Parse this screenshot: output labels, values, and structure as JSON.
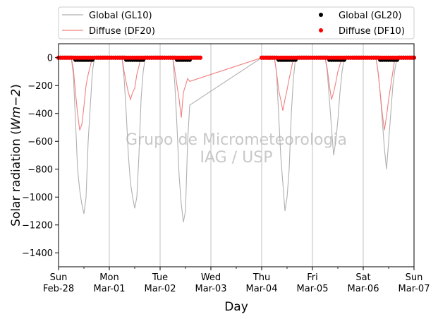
{
  "chart_data": {
    "type": "line",
    "title": "",
    "xlabel": "Day",
    "ylabel_main": "Solar radiation (",
    "ylabel_unit": "Wm−2",
    "ylabel_close": ")",
    "ylim": [
      -1500,
      100
    ],
    "xlim": [
      "2021-02-28 00:00",
      "2021-03-07 00:00"
    ],
    "grid": "vertical lines at day ticks",
    "legend": {
      "placement": "above plot, spanning two columns",
      "entries": [
        {
          "label": "Global (GL10)",
          "marker": "line",
          "color": "#b0b0b0"
        },
        {
          "label": "Diffuse (DF20)",
          "marker": "line",
          "color": "#f08080"
        },
        {
          "label": "Global (GL20)",
          "marker": "dot",
          "color": "#000000"
        },
        {
          "label": "Diffuse (DF10)",
          "marker": "dot",
          "color": "#ff0000"
        }
      ]
    },
    "watermark": [
      "Grupo de Micrometeorologia",
      "IAG / USP"
    ],
    "y_ticks": [
      0,
      -200,
      -400,
      -600,
      -800,
      -1000,
      -1200,
      -1400
    ],
    "y_tick_labels": [
      "0",
      "−200",
      "−400",
      "−600",
      "−800",
      "−1000",
      "−1200",
      "−1400"
    ],
    "x_ticks": [
      {
        "day": "Sun",
        "date": "Feb-28",
        "t": "2021-02-28"
      },
      {
        "day": "Mon",
        "date": "Mar-01",
        "t": "2021-03-01"
      },
      {
        "day": "Tue",
        "date": "Mar-02",
        "t": "2021-03-02"
      },
      {
        "day": "Wed",
        "date": "Mar-03",
        "t": "2021-03-03"
      },
      {
        "day": "Thu",
        "date": "Mar-04",
        "t": "2021-03-04"
      },
      {
        "day": "Fri",
        "date": "Mar-05",
        "t": "2021-03-05"
      },
      {
        "day": "Sat",
        "date": "Mar-06",
        "t": "2021-03-06"
      },
      {
        "day": "Sun",
        "date": "Mar-07",
        "t": "2021-03-07"
      }
    ],
    "series": [
      {
        "name": "Global (GL10)",
        "color": "#b0b0b0",
        "points": [
          [
            "2021-02-28 00:00",
            0
          ],
          [
            "2021-02-28 06:00",
            0
          ],
          [
            "2021-02-28 07:00",
            -120
          ],
          [
            "2021-02-28 08:00",
            -450
          ],
          [
            "2021-02-28 09:00",
            -800
          ],
          [
            "2021-02-28 10:00",
            -950
          ],
          [
            "2021-02-28 11:00",
            -1050
          ],
          [
            "2021-02-28 12:00",
            -1120
          ],
          [
            "2021-02-28 13:00",
            -1000
          ],
          [
            "2021-02-28 14:00",
            -600
          ],
          [
            "2021-02-28 15:00",
            -350
          ],
          [
            "2021-02-28 16:00",
            -100
          ],
          [
            "2021-02-28 17:00",
            0
          ],
          [
            "2021-03-01 06:00",
            0
          ],
          [
            "2021-03-01 07:00",
            -150
          ],
          [
            "2021-03-01 08:00",
            -400
          ],
          [
            "2021-03-01 09:00",
            -700
          ],
          [
            "2021-03-01 10:00",
            -900
          ],
          [
            "2021-03-01 11:00",
            -1000
          ],
          [
            "2021-03-01 12:00",
            -1080
          ],
          [
            "2021-03-01 13:00",
            -1000
          ],
          [
            "2021-03-01 14:00",
            -700
          ],
          [
            "2021-03-01 15:00",
            -300
          ],
          [
            "2021-03-01 16:00",
            -100
          ],
          [
            "2021-03-01 17:00",
            0
          ],
          [
            "2021-03-02 06:00",
            0
          ],
          [
            "2021-03-02 07:00",
            -200
          ],
          [
            "2021-03-02 08:00",
            -500
          ],
          [
            "2021-03-02 09:00",
            -850
          ],
          [
            "2021-03-02 10:00",
            -1050
          ],
          [
            "2021-03-02 11:00",
            -1180
          ],
          [
            "2021-03-02 12:00",
            -1100
          ],
          [
            "2021-03-02 13:00",
            -600
          ],
          [
            "2021-03-02 14:00",
            -340
          ],
          [
            "2021-03-04 00:00",
            0
          ],
          [
            "2021-03-04 06:00",
            0
          ],
          [
            "2021-03-04 07:00",
            -100
          ],
          [
            "2021-03-04 08:00",
            -400
          ],
          [
            "2021-03-04 09:00",
            -700
          ],
          [
            "2021-03-04 10:00",
            -900
          ],
          [
            "2021-03-04 11:00",
            -1100
          ],
          [
            "2021-03-04 12:00",
            -1000
          ],
          [
            "2021-03-04 13:00",
            -800
          ],
          [
            "2021-03-04 14:00",
            -400
          ],
          [
            "2021-03-04 15:00",
            -150
          ],
          [
            "2021-03-04 16:00",
            0
          ],
          [
            "2021-03-05 06:00",
            0
          ],
          [
            "2021-03-05 07:00",
            -100
          ],
          [
            "2021-03-05 08:00",
            -300
          ],
          [
            "2021-03-05 09:00",
            -500
          ],
          [
            "2021-03-05 10:00",
            -700
          ],
          [
            "2021-03-05 11:00",
            -600
          ],
          [
            "2021-03-05 12:00",
            -450
          ],
          [
            "2021-03-05 13:00",
            -250
          ],
          [
            "2021-03-05 14:00",
            -100
          ],
          [
            "2021-03-05 15:00",
            0
          ],
          [
            "2021-03-06 06:00",
            0
          ],
          [
            "2021-03-06 07:00",
            -100
          ],
          [
            "2021-03-06 08:00",
            -250
          ],
          [
            "2021-03-06 09:00",
            -450
          ],
          [
            "2021-03-06 10:00",
            -650
          ],
          [
            "2021-03-06 11:00",
            -800
          ],
          [
            "2021-03-06 12:00",
            -600
          ],
          [
            "2021-03-06 13:00",
            -400
          ],
          [
            "2021-03-06 14:00",
            -200
          ],
          [
            "2021-03-06 15:00",
            -80
          ],
          [
            "2021-03-06 16:00",
            0
          ],
          [
            "2021-03-07 00:00",
            0
          ]
        ]
      },
      {
        "name": "Diffuse (DF20)",
        "color": "#f08080",
        "points": [
          [
            "2021-02-28 00:00",
            0
          ],
          [
            "2021-02-28 06:00",
            0
          ],
          [
            "2021-02-28 07:00",
            -80
          ],
          [
            "2021-02-28 08:00",
            -250
          ],
          [
            "2021-02-28 09:00",
            -400
          ],
          [
            "2021-02-28 10:00",
            -520
          ],
          [
            "2021-02-28 11:00",
            -480
          ],
          [
            "2021-02-28 12:00",
            -350
          ],
          [
            "2021-02-28 13:00",
            -200
          ],
          [
            "2021-02-28 14:00",
            -120
          ],
          [
            "2021-02-28 15:00",
            -60
          ],
          [
            "2021-02-28 16:00",
            0
          ],
          [
            "2021-03-01 06:00",
            0
          ],
          [
            "2021-03-01 07:00",
            -100
          ],
          [
            "2021-03-01 08:00",
            -180
          ],
          [
            "2021-03-01 09:00",
            -250
          ],
          [
            "2021-03-01 10:00",
            -300
          ],
          [
            "2021-03-01 11:00",
            -250
          ],
          [
            "2021-03-01 12:00",
            -220
          ],
          [
            "2021-03-01 13:00",
            -120
          ],
          [
            "2021-03-01 14:00",
            -60
          ],
          [
            "2021-03-01 15:00",
            0
          ],
          [
            "2021-03-02 06:00",
            0
          ],
          [
            "2021-03-02 07:00",
            -100
          ],
          [
            "2021-03-02 08:00",
            -200
          ],
          [
            "2021-03-02 09:00",
            -300
          ],
          [
            "2021-03-02 10:00",
            -430
          ],
          [
            "2021-03-02 11:00",
            -250
          ],
          [
            "2021-03-02 12:00",
            -200
          ],
          [
            "2021-03-02 13:00",
            -150
          ],
          [
            "2021-03-02 14:00",
            -170
          ],
          [
            "2021-03-04 00:00",
            0
          ],
          [
            "2021-03-04 06:00",
            0
          ],
          [
            "2021-03-04 07:00",
            -100
          ],
          [
            "2021-03-04 08:00",
            -230
          ],
          [
            "2021-03-04 09:00",
            -300
          ],
          [
            "2021-03-04 10:00",
            -380
          ],
          [
            "2021-03-04 11:00",
            -300
          ],
          [
            "2021-03-04 12:00",
            -230
          ],
          [
            "2021-03-04 13:00",
            -150
          ],
          [
            "2021-03-04 14:00",
            -80
          ],
          [
            "2021-03-04 15:00",
            0
          ],
          [
            "2021-03-05 06:00",
            0
          ],
          [
            "2021-03-05 07:00",
            -80
          ],
          [
            "2021-03-05 08:00",
            -200
          ],
          [
            "2021-03-05 09:00",
            -300
          ],
          [
            "2021-03-05 10:00",
            -250
          ],
          [
            "2021-03-05 11:00",
            -180
          ],
          [
            "2021-03-05 12:00",
            -100
          ],
          [
            "2021-03-05 13:00",
            -50
          ],
          [
            "2021-03-05 14:00",
            0
          ],
          [
            "2021-03-06 06:00",
            0
          ],
          [
            "2021-03-06 07:00",
            -100
          ],
          [
            "2021-03-06 08:00",
            -250
          ],
          [
            "2021-03-06 09:00",
            -400
          ],
          [
            "2021-03-06 10:00",
            -520
          ],
          [
            "2021-03-06 11:00",
            -420
          ],
          [
            "2021-03-06 12:00",
            -300
          ],
          [
            "2021-03-06 13:00",
            -200
          ],
          [
            "2021-03-06 14:00",
            -100
          ],
          [
            "2021-03-06 15:00",
            0
          ],
          [
            "2021-03-07 00:00",
            0
          ]
        ]
      },
      {
        "name": "Global (GL20)",
        "color": "#000000",
        "marker": "dot",
        "daytime_dips": [
          [
            "2021-02-28 08:00",
            "2021-02-28 16:00",
            -15
          ],
          [
            "2021-03-01 08:00",
            "2021-03-01 16:00",
            -15
          ],
          [
            "2021-03-02 08:00",
            "2021-03-02 14:00",
            -15
          ],
          [
            "2021-03-04 08:00",
            "2021-03-04 16:00",
            -15
          ],
          [
            "2021-03-05 08:00",
            "2021-03-05 15:00",
            -15
          ],
          [
            "2021-03-06 08:00",
            "2021-03-06 16:00",
            -15
          ]
        ],
        "coverage": [
          [
            "2021-02-28 00:00",
            "2021-03-02 19:00"
          ],
          [
            "2021-03-04 00:00",
            "2021-03-07 00:00"
          ]
        ]
      },
      {
        "name": "Diffuse (DF10)",
        "color": "#ff0000",
        "marker": "dot",
        "daytime_dips": [],
        "coverage": [
          [
            "2021-02-28 00:00",
            "2021-03-02 19:00"
          ],
          [
            "2021-03-04 00:00",
            "2021-03-07 00:00"
          ]
        ]
      }
    ]
  }
}
